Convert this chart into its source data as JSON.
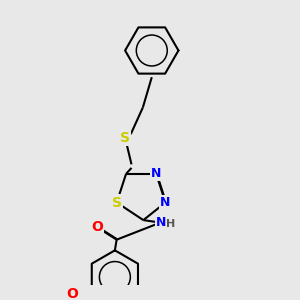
{
  "background_color": "#e8e8e8",
  "bond_color": "#000000",
  "atom_colors": {
    "S": "#cccc00",
    "N": "#0000ff",
    "O": "#ff0000",
    "H": "#555555",
    "C": "#000000"
  },
  "figsize": [
    3.0,
    3.0
  ],
  "dpi": 100,
  "lw": 1.5,
  "font_size": 9
}
